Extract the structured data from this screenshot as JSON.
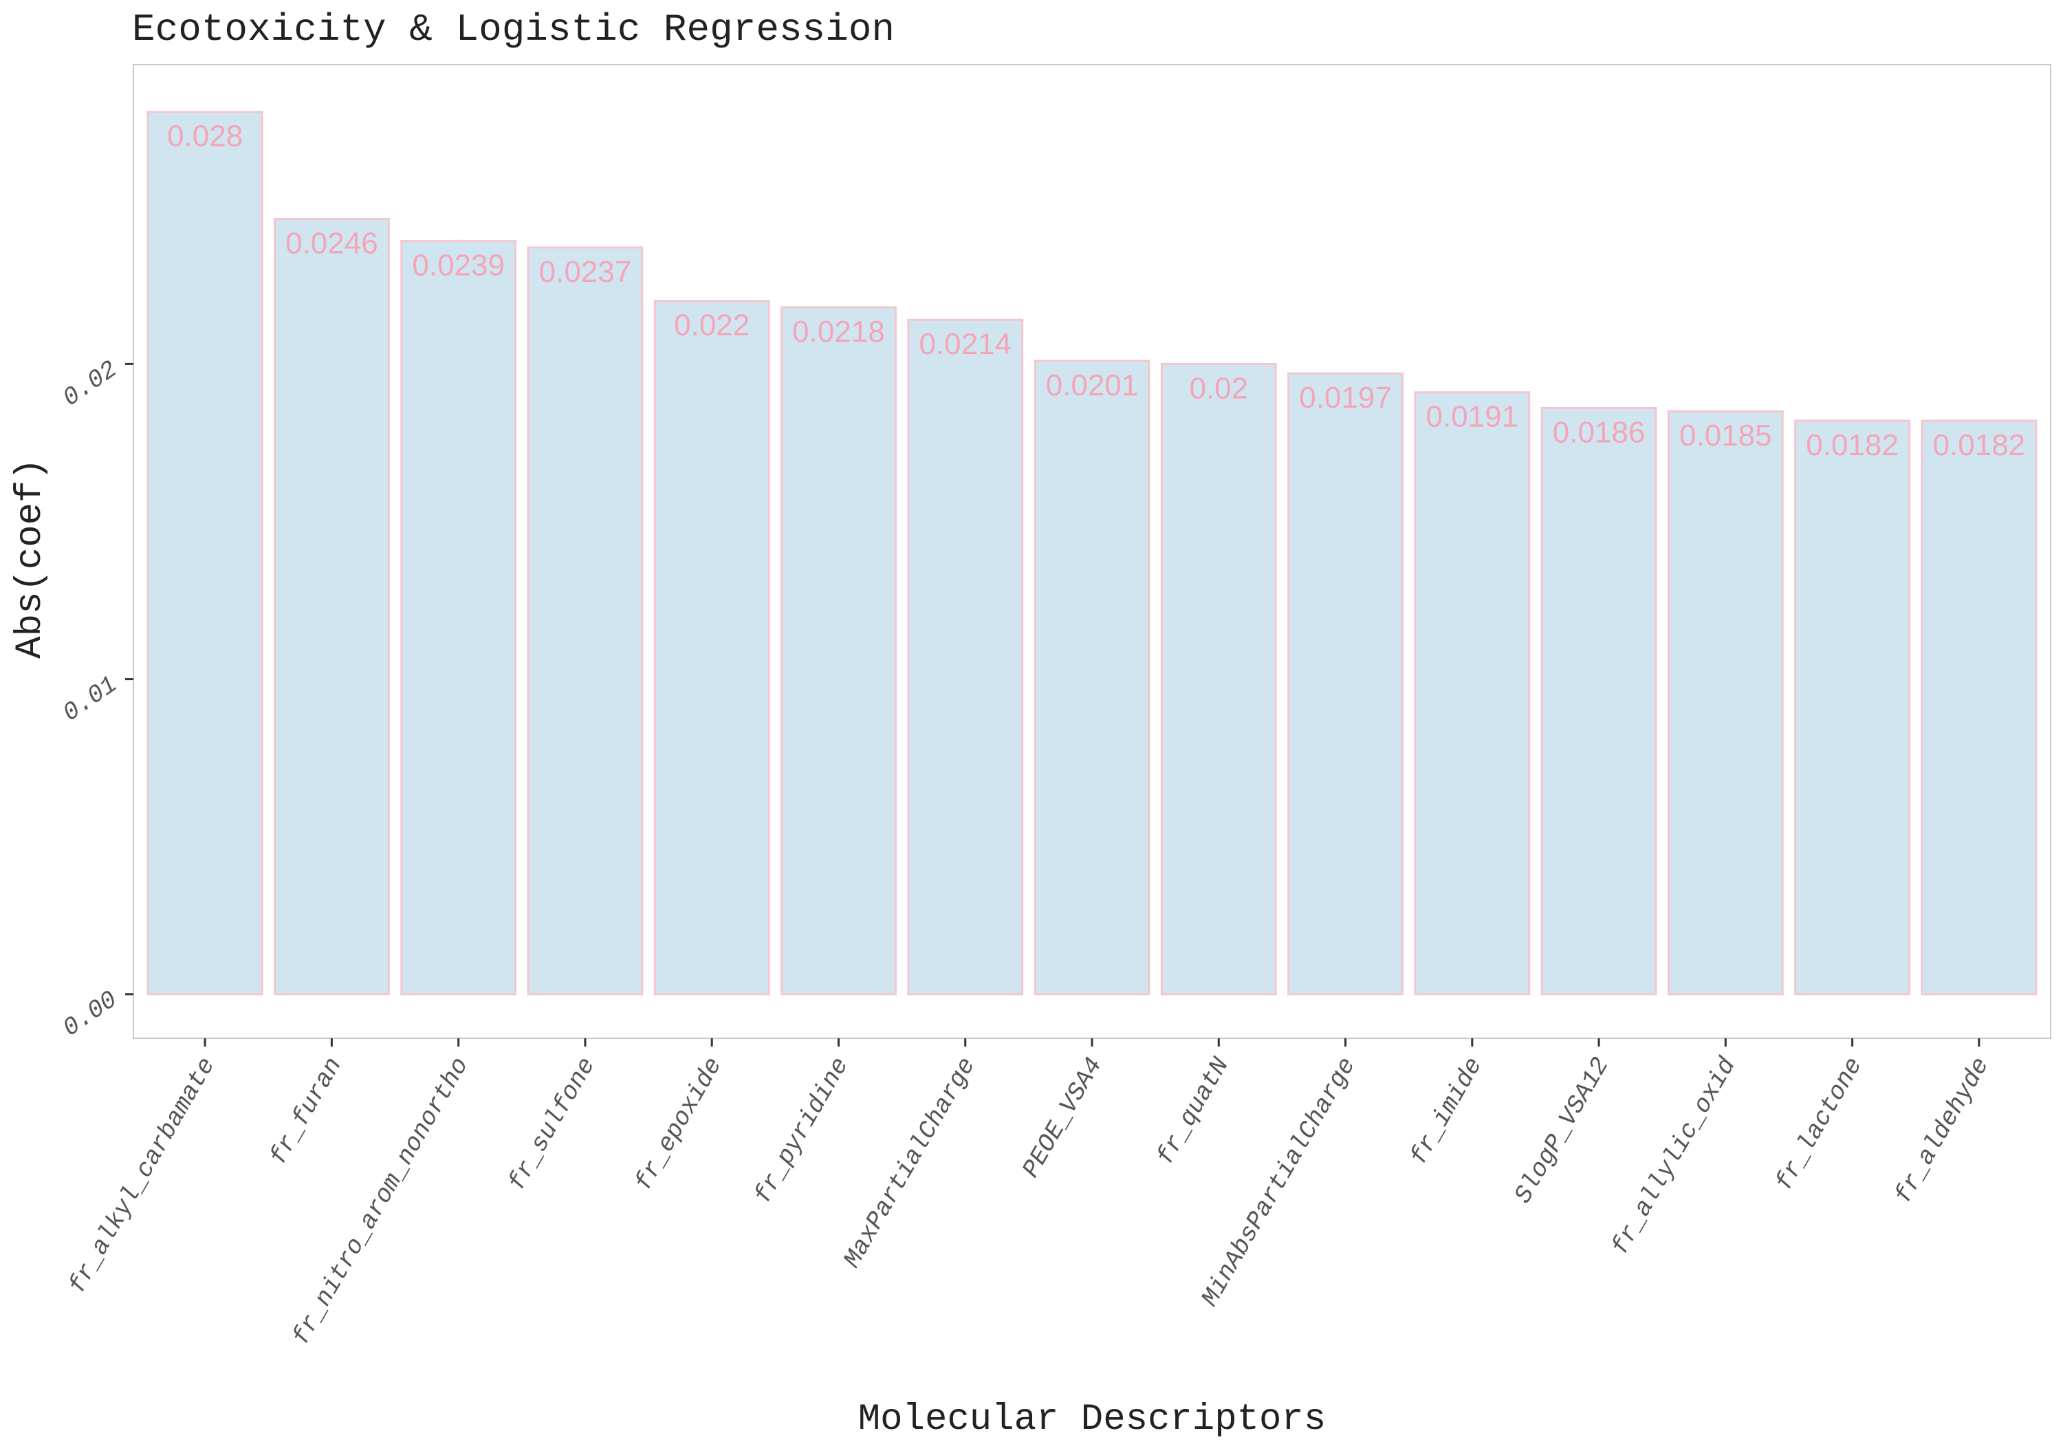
{
  "chart_data": {
    "type": "bar",
    "title": "Ecotoxicity & Logistic Regression",
    "xlabel": "Molecular Descriptors",
    "ylabel": "Abs(coef)",
    "ylim": [
      -0.0014,
      0.0295
    ],
    "yticks": [
      0.0,
      0.01,
      0.02
    ],
    "ytick_labels": [
      "0.00",
      "0.01",
      "0.02"
    ],
    "grid": false,
    "bar_fill": "#d0e5f0",
    "bar_stroke": "#f5c6cf",
    "label_color": "#f4a6b8",
    "categories": [
      "fr_alkyl_carbamate",
      "fr_furan",
      "fr_nitro_arom_nonortho",
      "fr_sulfone",
      "fr_epoxide",
      "fr_pyridine",
      "MaxPartialCharge",
      "PEOE_VSA4",
      "fr_quatN",
      "MinAbsPartialCharge",
      "fr_imide",
      "SlogP_VSA12",
      "fr_allylic_oxid",
      "fr_lactone",
      "fr_aldehyde"
    ],
    "values": [
      0.028,
      0.0246,
      0.0239,
      0.0237,
      0.022,
      0.0218,
      0.0214,
      0.0201,
      0.02,
      0.0197,
      0.0191,
      0.0186,
      0.0185,
      0.0182,
      0.0182
    ],
    "data_labels": [
      "0.028",
      "0.0246",
      "0.0239",
      "0.0237",
      "0.022",
      "0.0218",
      "0.0214",
      "0.0201",
      "0.02",
      "0.0197",
      "0.0191",
      "0.0186",
      "0.0185",
      "0.0182",
      "0.0182"
    ]
  }
}
